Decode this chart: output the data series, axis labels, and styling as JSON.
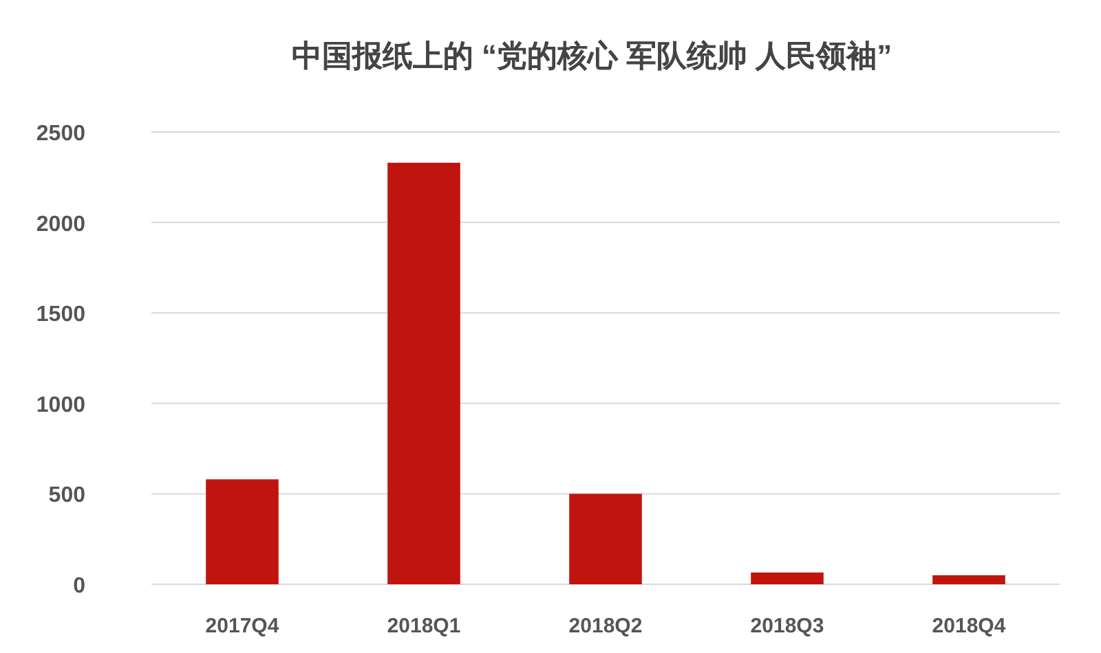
{
  "chart_data": {
    "type": "bar",
    "title": "中国报纸上的 “党的核心 军队统帅 人民领袖”",
    "categories": [
      "2017Q4",
      "2018Q1",
      "2018Q2",
      "2018Q3",
      "2018Q4"
    ],
    "values": [
      580,
      2330,
      500,
      65,
      50
    ],
    "color": "#c0150f",
    "ylim": [
      0,
      2500
    ],
    "yticks": [
      0,
      500,
      1000,
      1500,
      2000,
      2500
    ],
    "grid": "y"
  }
}
